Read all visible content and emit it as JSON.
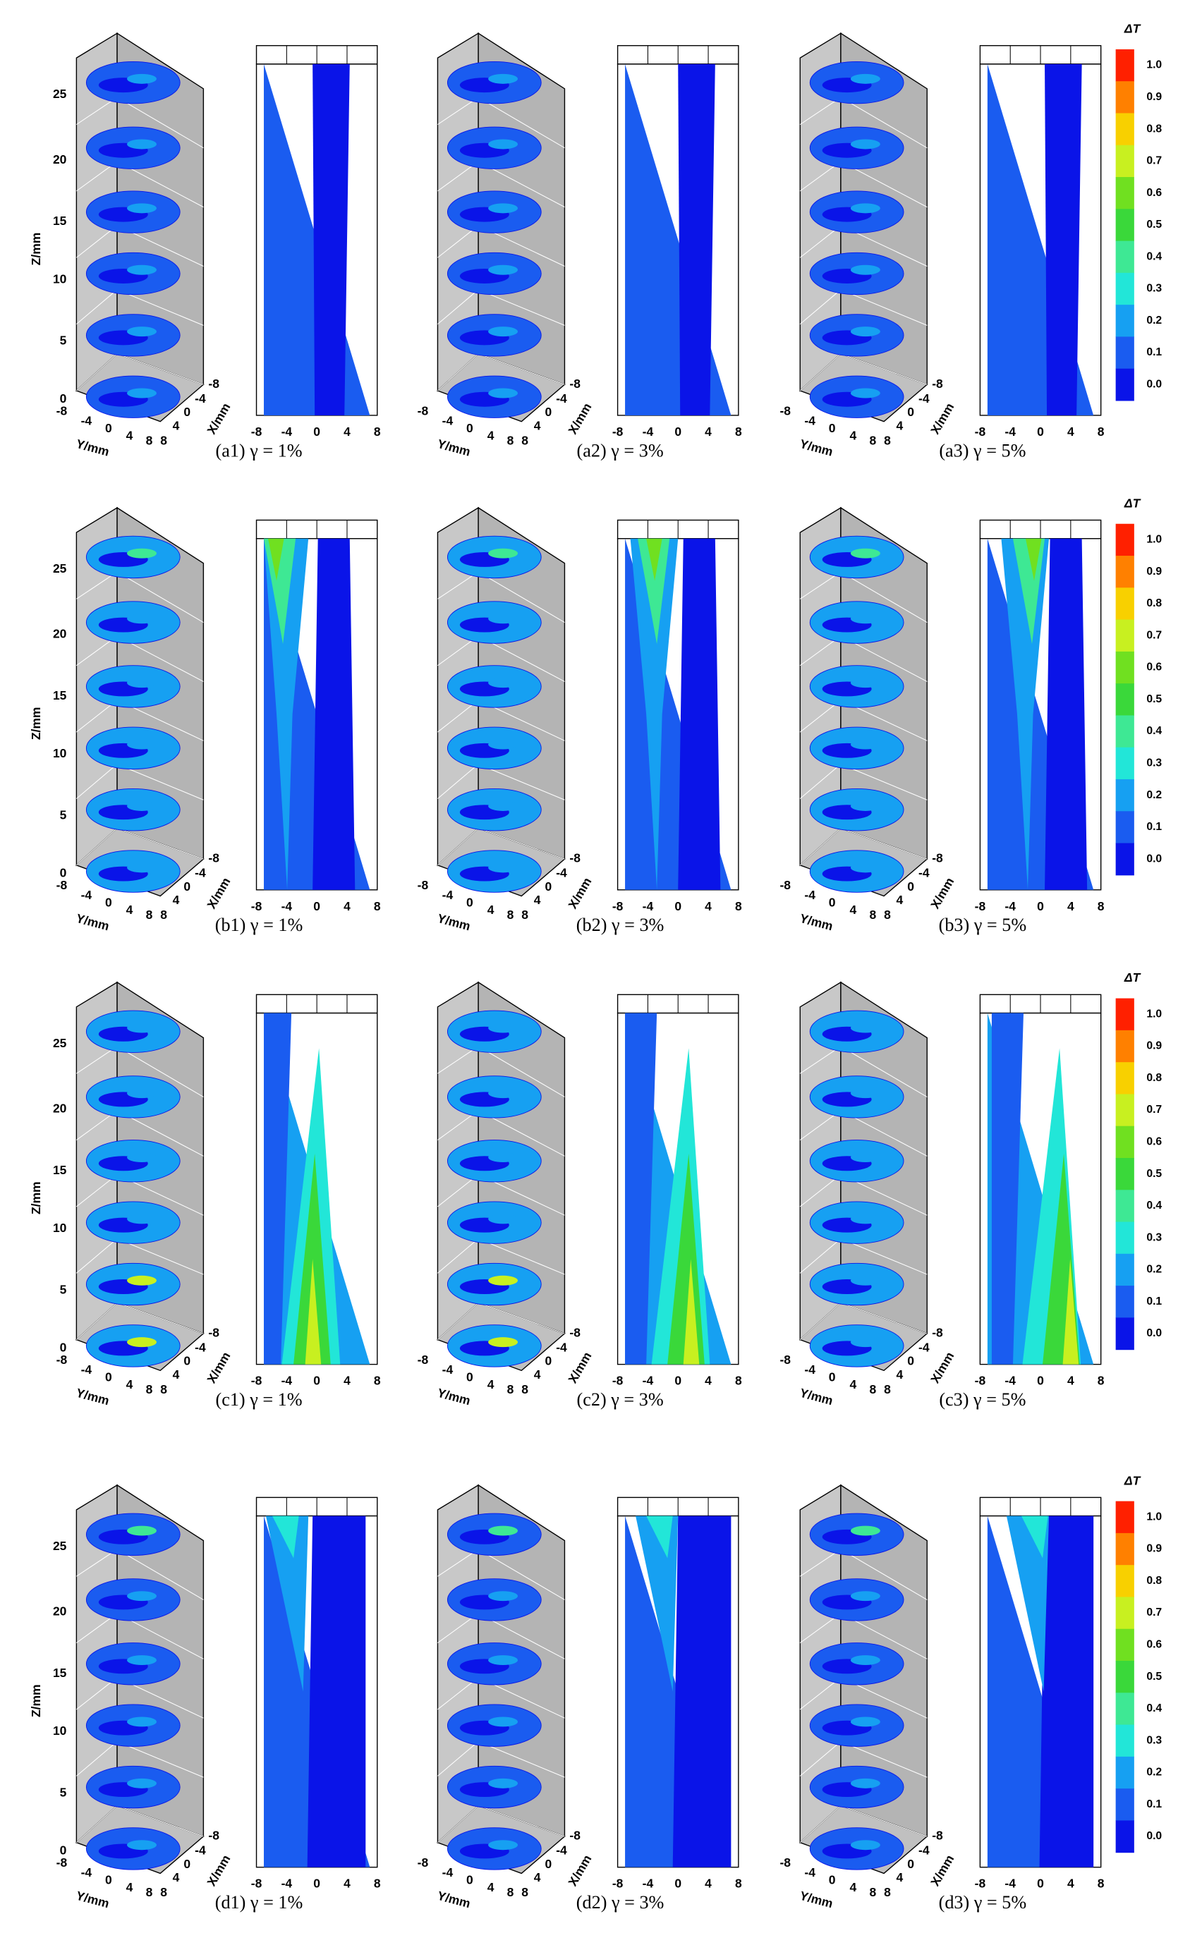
{
  "figure": {
    "rows": [
      {
        "captions": [
          "(a1) γ = 1%",
          "(a2) γ = 3%",
          "(a3) γ = 5%"
        ]
      },
      {
        "captions": [
          "(b1) γ = 1%",
          "(b2) γ = 3%",
          "(b3) γ = 5%"
        ]
      },
      {
        "captions": [
          "(c1) γ = 1%",
          "(c2) γ = 3%",
          "(c3) γ = 5%"
        ]
      },
      {
        "captions": [
          "(d1) γ = 1%",
          "(d2) γ = 3%",
          "(d3) γ = 5%"
        ]
      }
    ],
    "colorbar": {
      "title": "ΔT",
      "ticks": [
        "1.0",
        "0.9",
        "0.8",
        "0.7",
        "0.6",
        "0.5",
        "0.4",
        "0.3",
        "0.2",
        "0.1",
        "0.0"
      ]
    },
    "axes": {
      "z_label": "Z/mm",
      "z_ticks": [
        "0",
        "5",
        "10",
        "15",
        "20",
        "25"
      ],
      "y_label": "Y/mm",
      "y_ticks": [
        "-8",
        "-4",
        "0",
        "4",
        "8"
      ],
      "x_label": "X/mm",
      "x_ticks": [
        "8",
        "4",
        "0",
        "-4",
        "-8"
      ],
      "contour_ticks": [
        "-8",
        "-4",
        "0",
        "4",
        "8"
      ]
    }
  }
}
